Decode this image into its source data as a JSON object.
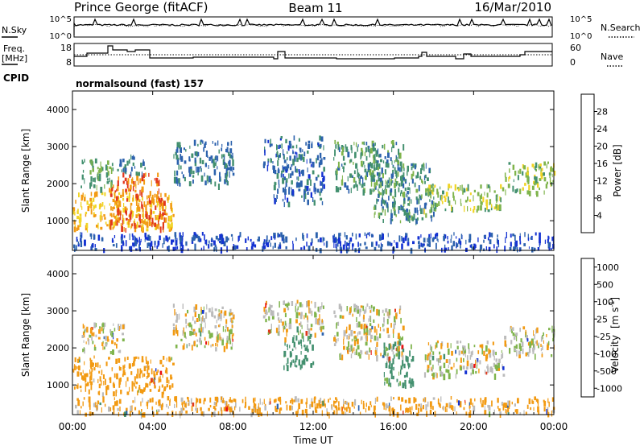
{
  "header": {
    "title": "Prince George (fitACF)",
    "beam": "Beam 11",
    "date": "16/Mar/2010"
  },
  "top_panels": {
    "nsky_label": "N.Sky",
    "nsky_ticks": [
      "10^5",
      "10^0"
    ],
    "nsearch_label": "N.Search",
    "nsearch_ticks": [
      "10^5",
      "10^0"
    ],
    "freq_label": "Freq.",
    "freq_unit": "[MHz]",
    "freq_ticks": [
      "18",
      "8"
    ],
    "nave_label": "Nave",
    "nave_ticks": [
      "60",
      "0"
    ],
    "cpid_label": "CPID",
    "cpid_value": "normalsound (fast) 157"
  },
  "chart_data": [
    {
      "type": "heatmap",
      "name": "power",
      "ylabel": "Slant Range [km]",
      "y_ticks": [
        "1000",
        "2000",
        "3000",
        "4000"
      ],
      "ylim": [
        200,
        4500
      ],
      "colorbar_label": "Power [dB]",
      "colorbar_ticks": [
        "4",
        "8",
        "12",
        "16",
        "20",
        "24",
        "28"
      ],
      "colorbar_colors": [
        "#1432d2",
        "#2c62ad",
        "#43906f",
        "#7fb44c",
        "#f1d425",
        "#f29a12",
        "#e2371c",
        "#cc1010"
      ],
      "regions": [
        {
          "t": [
            0.0,
            5.0
          ],
          "r": [
            800,
            1800
          ],
          "p": 22
        },
        {
          "t": [
            1.8,
            4.6
          ],
          "r": [
            800,
            2300
          ],
          "p": 26
        },
        {
          "t": [
            0.4,
            2.0
          ],
          "r": [
            1900,
            2700
          ],
          "p": 14
        },
        {
          "t": [
            2.2,
            3.6
          ],
          "r": [
            2300,
            2800
          ],
          "p": 10
        },
        {
          "t": [
            5.0,
            8.0
          ],
          "r": [
            2000,
            3200
          ],
          "p": 10
        },
        {
          "t": [
            9.5,
            12.5
          ],
          "r": [
            2400,
            3300
          ],
          "p": 9
        },
        {
          "t": [
            10.0,
            12.5
          ],
          "r": [
            1500,
            2400
          ],
          "p": 8
        },
        {
          "t": [
            13.0,
            16.5
          ],
          "r": [
            1800,
            3200
          ],
          "p": 12
        },
        {
          "t": [
            15.0,
            18.0
          ],
          "r": [
            1000,
            2600
          ],
          "p": 12
        },
        {
          "t": [
            17.5,
            19.5
          ],
          "r": [
            1300,
            2000
          ],
          "p": 16
        },
        {
          "t": [
            19.5,
            21.5
          ],
          "r": [
            1300,
            2000
          ],
          "p": 17
        },
        {
          "t": [
            21.5,
            24.0
          ],
          "r": [
            1800,
            2600
          ],
          "p": 16
        },
        {
          "t": [
            0.0,
            24.0
          ],
          "r": [
            250,
            700
          ],
          "p": 6
        }
      ]
    },
    {
      "type": "heatmap",
      "name": "velocity",
      "ylabel": "Slant Range [km]",
      "y_ticks": [
        "1000",
        "2000",
        "3000",
        "4000"
      ],
      "ylim": [
        200,
        4500
      ],
      "colorbar_label": "Velocity",
      "colorbar_unit": "[m s",
      "colorbar_unit_sup": "-1",
      "colorbar_unit_end": "]",
      "colorbar_ticks": [
        "1000",
        "500",
        "100",
        "25",
        "-25",
        "-100",
        "-500",
        "-1000"
      ],
      "colorbar_colors": [
        "#1432d2",
        "#2c62ad",
        "#43906f",
        "#7fb44c",
        "#bbbbbb",
        "#f29a12",
        "#e2371c",
        "#e81010"
      ],
      "regions": [
        {
          "t": [
            0.0,
            5.0
          ],
          "r": [
            800,
            1800
          ],
          "v": -150
        },
        {
          "t": [
            0.4,
            2.5
          ],
          "r": [
            1900,
            2700
          ],
          "v": 0
        },
        {
          "t": [
            5.0,
            8.0
          ],
          "r": [
            2000,
            3200
          ],
          "v": 0
        },
        {
          "t": [
            9.5,
            12.5
          ],
          "r": [
            2400,
            3300
          ],
          "v": 0
        },
        {
          "t": [
            10.5,
            12.0
          ],
          "r": [
            1500,
            2400
          ],
          "v": 150
        },
        {
          "t": [
            13.0,
            16.5
          ],
          "r": [
            1800,
            3200
          ],
          "v": 0
        },
        {
          "t": [
            15.5,
            17.0
          ],
          "r": [
            1000,
            2200
          ],
          "v": 150
        },
        {
          "t": [
            17.5,
            21.5
          ],
          "r": [
            1300,
            2200
          ],
          "v": 0
        },
        {
          "t": [
            21.5,
            24.0
          ],
          "r": [
            1800,
            2600
          ],
          "v": 0
        },
        {
          "t": [
            0.0,
            24.0
          ],
          "r": [
            250,
            700
          ],
          "v": -60
        }
      ]
    }
  ],
  "x_axis": {
    "ticks": [
      "00:00",
      "04:00",
      "08:00",
      "12:00",
      "16:00",
      "20:00",
      "00:00"
    ],
    "label": "Time UT"
  }
}
